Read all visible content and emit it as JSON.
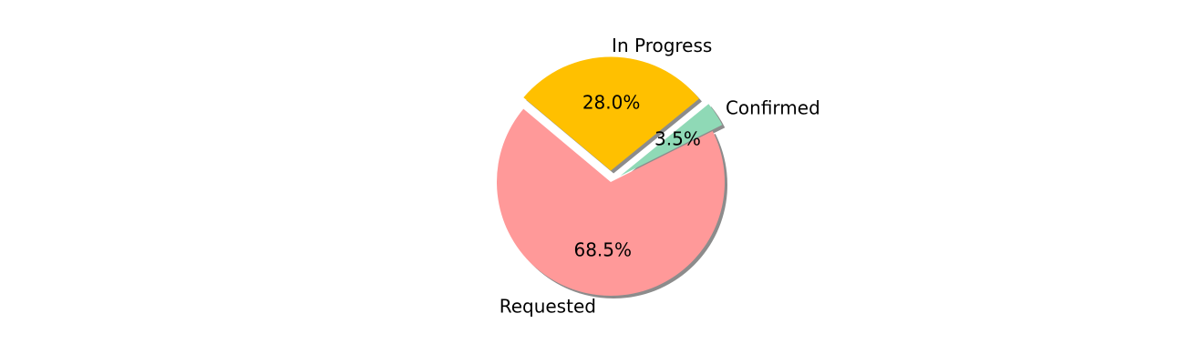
{
  "chart_data": {
    "type": "pie",
    "slices": [
      {
        "label": "Requested",
        "value": 68.5,
        "pct_label": "68.5%",
        "color": "#ff9999",
        "exploded": false
      },
      {
        "label": "Confirmed",
        "value": 3.5,
        "pct_label": "3.5%",
        "color": "#8fd9b6",
        "exploded": true
      },
      {
        "label": "In Progress",
        "value": 28.0,
        "pct_label": "28.0%",
        "color": "#ffc000",
        "exploded": true
      }
    ],
    "shadow": true,
    "title": ""
  }
}
